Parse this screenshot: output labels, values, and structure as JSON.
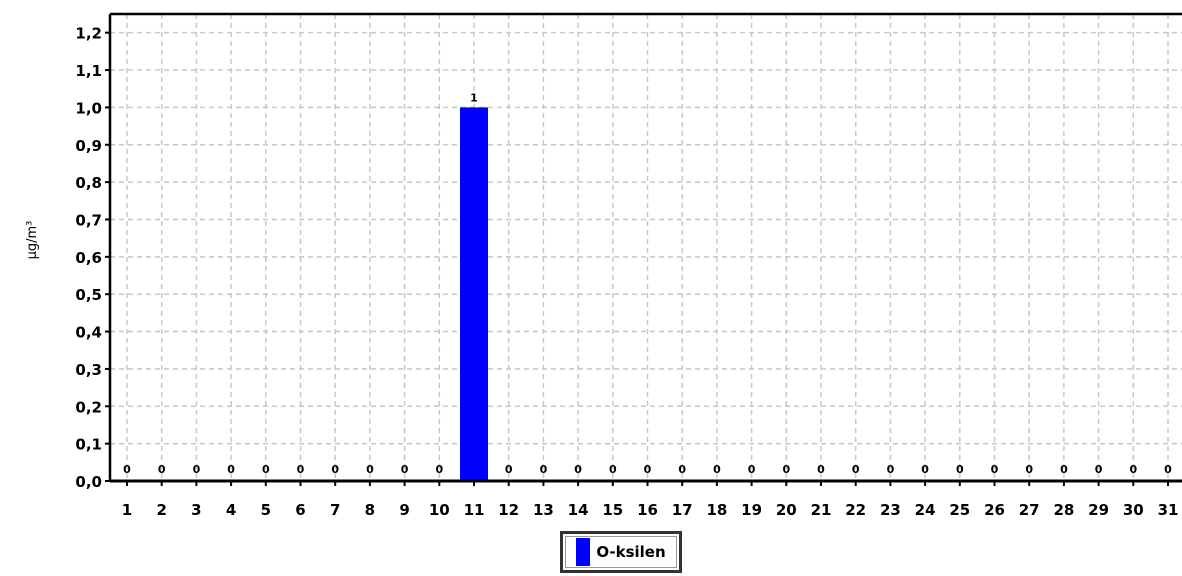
{
  "chart_data": {
    "type": "bar",
    "categories": [
      "1",
      "2",
      "3",
      "4",
      "5",
      "6",
      "7",
      "8",
      "9",
      "10",
      "11",
      "12",
      "13",
      "14",
      "15",
      "16",
      "17",
      "18",
      "19",
      "20",
      "21",
      "22",
      "23",
      "24",
      "25",
      "26",
      "27",
      "28",
      "29",
      "30",
      "31"
    ],
    "series": [
      {
        "name": "O-ksilen",
        "color": "#0000ff",
        "values": [
          0,
          0,
          0,
          0,
          0,
          0,
          0,
          0,
          0,
          0,
          1,
          0,
          0,
          0,
          0,
          0,
          0,
          0,
          0,
          0,
          0,
          0,
          0,
          0,
          0,
          0,
          0,
          0,
          0,
          0,
          0
        ]
      }
    ],
    "data_labels": [
      "0",
      "0",
      "0",
      "0",
      "0",
      "0",
      "0",
      "0",
      "0",
      "0",
      "1",
      "0",
      "0",
      "0",
      "0",
      "0",
      "0",
      "0",
      "0",
      "0",
      "0",
      "0",
      "0",
      "0",
      "0",
      "0",
      "0",
      "0",
      "0",
      "0",
      "0"
    ],
    "ylabel": "µg/m³",
    "ylim": [
      0,
      1.25
    ],
    "yticks": [
      "0,0",
      "0,1",
      "0,2",
      "0,3",
      "0,4",
      "0,5",
      "0,6",
      "0,7",
      "0,8",
      "0,9",
      "1,0",
      "1,1",
      "1,2"
    ],
    "grid": true,
    "legend_placement": "bottom-center"
  }
}
